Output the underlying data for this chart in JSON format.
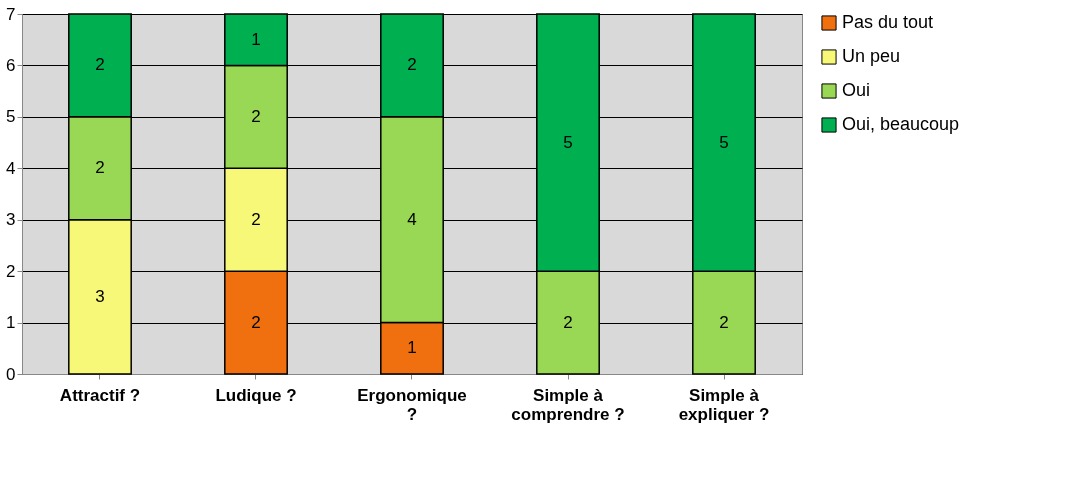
{
  "chart_data": {
    "type": "bar",
    "stacked": true,
    "data_labels": true,
    "grid": "y",
    "legend": "right",
    "categories": [
      "Attractif ?",
      "Ludique ?",
      "Ergonomique ?",
      "Simple à comprendre ?",
      "Simple à expliquer ?"
    ],
    "ylim": [
      0,
      7
    ],
    "yticks": [
      0,
      1,
      2,
      3,
      4,
      5,
      6,
      7
    ],
    "series": [
      {
        "name": "Pas du tout",
        "color": "#f07010",
        "values": [
          null,
          2,
          1,
          null,
          null
        ]
      },
      {
        "name": "Un peu",
        "color": "#f8f878",
        "values": [
          3,
          2,
          null,
          null,
          null
        ]
      },
      {
        "name": "Oui",
        "color": "#99d855",
        "values": [
          2,
          2,
          4,
          2,
          2
        ]
      },
      {
        "name": "Oui, beaucoup",
        "color": "#00b050",
        "values": [
          2,
          1,
          2,
          5,
          5
        ]
      }
    ]
  }
}
